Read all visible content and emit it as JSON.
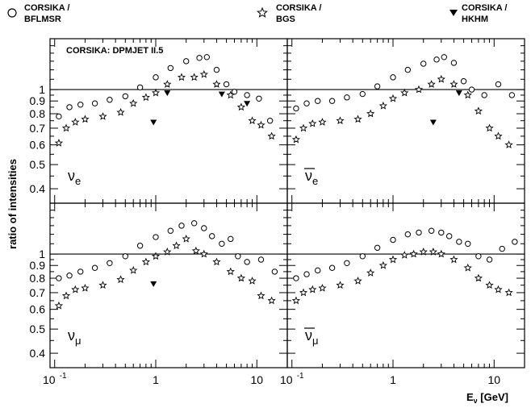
{
  "legend": [
    {
      "marker": "circle",
      "line1": "CORSIKA /",
      "line2": "BFLMSR"
    },
    {
      "marker": "star",
      "line1": "CORSIKA /",
      "line2": "BGS"
    },
    {
      "marker": "triangle",
      "line1": "CORSIKA /",
      "line2": "HKHM"
    }
  ],
  "model_label": "CORSIKA: DPMJET II.5",
  "ylabel": "ratio of intensities",
  "xlabel": "Eν [GeV]",
  "xlabel_main": "E",
  "xlabel_sub": "ν",
  "xlabel_unit": " [GeV]",
  "chart_data": {
    "type": "scatter",
    "xscale": "log",
    "yscale": "log",
    "xlim": [
      0.09,
      20
    ],
    "ylim": [
      0.35,
      1.6
    ],
    "reference_line": 1.0,
    "x_ticks": [
      "10",
      "1",
      "10"
    ],
    "x_tick_values": [
      0.1,
      1,
      10
    ],
    "y_ticks": [
      "1",
      "0.9",
      "0.8",
      "0.7",
      "0.6",
      "0.5",
      "0.4"
    ],
    "y_tick_values": [
      1,
      0.9,
      0.8,
      0.7,
      0.6,
      0.5,
      0.4
    ],
    "panels": [
      {
        "label_base": "ν",
        "label_sub": "e",
        "bar": false,
        "series": [
          {
            "name": "CORSIKA / BFLMSR",
            "marker": "circle",
            "x": [
              0.11,
              0.14,
              0.18,
              0.25,
              0.35,
              0.5,
              0.7,
              1.0,
              1.4,
              2.0,
              2.7,
              3.2,
              4.0,
              5.0,
              6.0,
              8.0,
              10.5,
              13.5
            ],
            "y": [
              0.78,
              0.85,
              0.87,
              0.88,
              0.91,
              0.94,
              1.02,
              1.12,
              1.22,
              1.3,
              1.34,
              1.35,
              1.2,
              1.05,
              0.98,
              0.95,
              0.92,
              0.75
            ]
          },
          {
            "name": "CORSIKA / BGS",
            "marker": "star",
            "x": [
              0.11,
              0.13,
              0.16,
              0.2,
              0.3,
              0.45,
              0.6,
              0.8,
              1.0,
              1.3,
              1.8,
              2.4,
              3.0,
              4.0,
              5.5,
              7.0,
              9.0,
              11.0,
              14.0
            ],
            "y": [
              0.61,
              0.7,
              0.74,
              0.76,
              0.78,
              0.81,
              0.88,
              0.93,
              0.97,
              1.05,
              1.12,
              1.12,
              1.15,
              1.05,
              0.95,
              0.85,
              0.75,
              0.72,
              0.65
            ]
          },
          {
            "name": "CORSIKA / HKHM",
            "marker": "triangle",
            "x": [
              0.95,
              1.3,
              4.5,
              8.0
            ],
            "y": [
              0.74,
              0.97,
              0.96,
              0.88
            ]
          }
        ]
      },
      {
        "label_base": "ν",
        "label_sub": "e",
        "bar": true,
        "series": [
          {
            "name": "CORSIKA / BFLMSR",
            "marker": "circle",
            "x": [
              0.11,
              0.14,
              0.18,
              0.25,
              0.35,
              0.5,
              0.7,
              1.0,
              1.4,
              2.0,
              2.7,
              3.2,
              4.0,
              5.0,
              6.0,
              8.0,
              11.0,
              15.0
            ],
            "y": [
              0.84,
              0.88,
              0.9,
              0.9,
              0.93,
              0.96,
              1.03,
              1.12,
              1.2,
              1.27,
              1.32,
              1.35,
              1.28,
              1.08,
              1.0,
              0.95,
              1.05,
              0.95
            ]
          },
          {
            "name": "CORSIKA / BGS",
            "marker": "star",
            "x": [
              0.11,
              0.13,
              0.16,
              0.2,
              0.3,
              0.45,
              0.6,
              0.8,
              1.0,
              1.3,
              1.8,
              2.4,
              3.0,
              4.0,
              5.5,
              7.0,
              9.0,
              11.0,
              14.0
            ],
            "y": [
              0.63,
              0.7,
              0.73,
              0.74,
              0.75,
              0.76,
              0.8,
              0.86,
              0.92,
              0.97,
              1.0,
              1.05,
              1.1,
              1.05,
              0.95,
              0.82,
              0.7,
              0.65,
              0.6
            ]
          },
          {
            "name": "CORSIKA / HKHM",
            "marker": "triangle",
            "x": [
              2.5,
              4.5
            ],
            "y": [
              0.74,
              0.97
            ]
          }
        ]
      },
      {
        "label_base": "ν",
        "label_sub": "μ",
        "bar": false,
        "series": [
          {
            "name": "CORSIKA / BFLMSR",
            "marker": "circle",
            "x": [
              0.11,
              0.14,
              0.18,
              0.25,
              0.35,
              0.5,
              0.7,
              1.0,
              1.4,
              1.8,
              2.4,
              3.0,
              3.6,
              4.5,
              5.5,
              6.5,
              8.0,
              11.0,
              15.0
            ],
            "y": [
              0.8,
              0.82,
              0.85,
              0.88,
              0.92,
              0.98,
              1.08,
              1.17,
              1.24,
              1.3,
              1.33,
              1.27,
              1.18,
              1.1,
              1.15,
              0.98,
              0.93,
              0.95,
              0.85
            ]
          },
          {
            "name": "CORSIKA / BGS",
            "marker": "star",
            "x": [
              0.11,
              0.13,
              0.16,
              0.2,
              0.3,
              0.45,
              0.6,
              0.8,
              1.0,
              1.3,
              1.6,
              2.0,
              2.5,
              3.0,
              4.0,
              5.5,
              7.0,
              9.0,
              11.0,
              14.0
            ],
            "y": [
              0.62,
              0.68,
              0.72,
              0.73,
              0.75,
              0.79,
              0.86,
              0.93,
              0.98,
              1.02,
              1.08,
              1.15,
              1.03,
              1.0,
              0.93,
              0.85,
              0.8,
              0.78,
              0.68,
              0.65
            ]
          },
          {
            "name": "CORSIKA / HKHM",
            "marker": "triangle",
            "x": [
              0.95
            ],
            "y": [
              0.76
            ]
          }
        ]
      },
      {
        "label_base": "ν",
        "label_sub": "μ",
        "bar": true,
        "series": [
          {
            "name": "CORSIKA / BFLMSR",
            "marker": "circle",
            "x": [
              0.11,
              0.14,
              0.18,
              0.25,
              0.35,
              0.5,
              0.7,
              1.0,
              1.4,
              1.8,
              2.4,
              3.0,
              3.6,
              4.5,
              5.5,
              7.0,
              9.0,
              12.0,
              16.0
            ],
            "y": [
              0.8,
              0.83,
              0.86,
              0.88,
              0.92,
              0.98,
              1.06,
              1.14,
              1.2,
              1.22,
              1.24,
              1.22,
              1.18,
              1.12,
              1.1,
              0.98,
              0.95,
              1.05,
              1.12
            ]
          },
          {
            "name": "CORSIKA / BGS",
            "marker": "star",
            "x": [
              0.11,
              0.13,
              0.16,
              0.2,
              0.3,
              0.45,
              0.6,
              0.8,
              1.0,
              1.3,
              1.6,
              2.0,
              2.5,
              3.0,
              4.0,
              5.5,
              7.0,
              9.0,
              11.0,
              14.0
            ],
            "y": [
              0.65,
              0.7,
              0.72,
              0.73,
              0.75,
              0.78,
              0.84,
              0.9,
              0.95,
              0.99,
              1.0,
              1.02,
              1.02,
              1.0,
              0.95,
              0.88,
              0.8,
              0.75,
              0.72,
              0.7
            ]
          },
          {
            "name": "CORSIKA / HKHM",
            "marker": "triangle",
            "x": [],
            "y": []
          }
        ]
      }
    ]
  }
}
